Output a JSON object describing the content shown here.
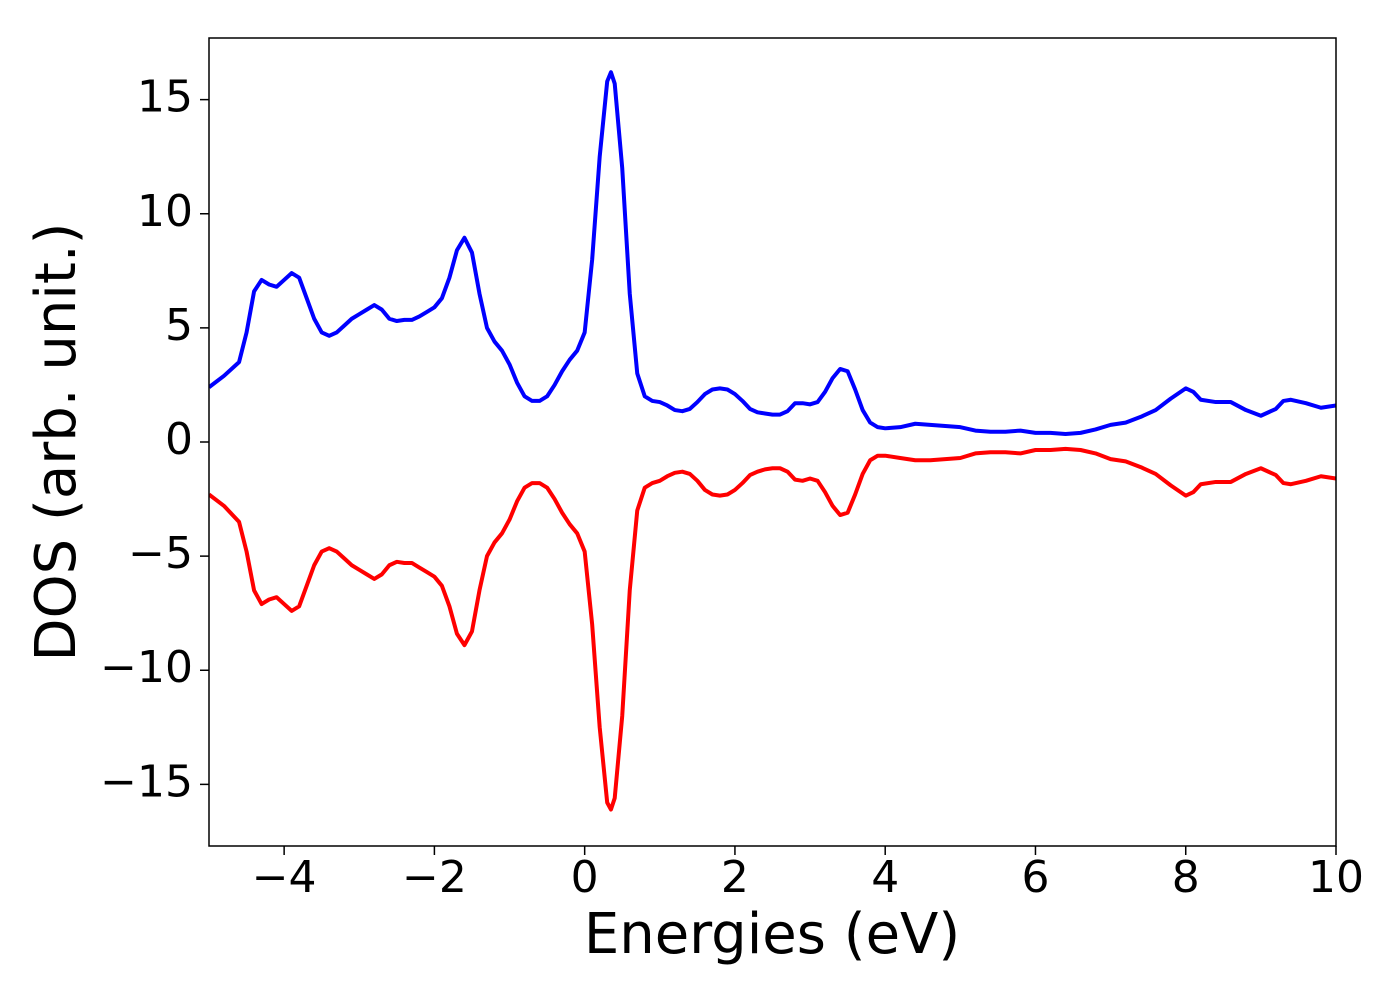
{
  "chart_data": {
    "type": "line",
    "xlabel": "Energies (eV)",
    "ylabel": "DOS (arb. unit.)",
    "x": [
      -5,
      -4.8,
      -4.6,
      -4.5,
      -4.4,
      -4.3,
      -4.2,
      -4.1,
      -4.0,
      -3.9,
      -3.8,
      -3.7,
      -3.6,
      -3.5,
      -3.4,
      -3.3,
      -3.2,
      -3.1,
      -3.0,
      -2.9,
      -2.8,
      -2.7,
      -2.6,
      -2.5,
      -2.4,
      -2.3,
      -2.2,
      -2.1,
      -2.0,
      -1.9,
      -1.8,
      -1.7,
      -1.6,
      -1.5,
      -1.4,
      -1.3,
      -1.2,
      -1.1,
      -1.0,
      -0.9,
      -0.8,
      -0.7,
      -0.6,
      -0.5,
      -0.4,
      -0.3,
      -0.2,
      -0.1,
      0.0,
      0.1,
      0.2,
      0.3,
      0.35,
      0.4,
      0.5,
      0.6,
      0.7,
      0.8,
      0.9,
      1.0,
      1.1,
      1.2,
      1.3,
      1.4,
      1.5,
      1.6,
      1.7,
      1.8,
      1.9,
      2.0,
      2.1,
      2.2,
      2.3,
      2.4,
      2.5,
      2.6,
      2.7,
      2.8,
      2.9,
      3.0,
      3.1,
      3.2,
      3.3,
      3.4,
      3.5,
      3.6,
      3.7,
      3.8,
      3.9,
      4.0,
      4.2,
      4.4,
      4.6,
      4.8,
      5.0,
      5.2,
      5.4,
      5.6,
      5.8,
      6.0,
      6.2,
      6.4,
      6.6,
      6.8,
      7.0,
      7.2,
      7.4,
      7.6,
      7.8,
      8.0,
      8.1,
      8.2,
      8.4,
      8.6,
      8.8,
      9.0,
      9.2,
      9.3,
      9.4,
      9.6,
      9.8,
      10.0
    ],
    "series": [
      {
        "color": "#0000ff",
        "values": [
          2.4,
          2.9,
          3.5,
          4.8,
          6.6,
          7.1,
          6.9,
          6.8,
          7.1,
          7.4,
          7.2,
          6.3,
          5.4,
          4.8,
          4.65,
          4.8,
          5.1,
          5.4,
          5.6,
          5.8,
          6.0,
          5.8,
          5.4,
          5.3,
          5.35,
          5.35,
          5.5,
          5.7,
          5.9,
          6.3,
          7.2,
          8.4,
          8.95,
          8.3,
          6.5,
          5.0,
          4.4,
          4.0,
          3.4,
          2.6,
          2.0,
          1.8,
          1.8,
          2.0,
          2.5,
          3.1,
          3.6,
          4.0,
          4.8,
          8.0,
          12.5,
          15.8,
          16.2,
          15.7,
          12.0,
          6.5,
          3.0,
          2.0,
          1.8,
          1.75,
          1.6,
          1.4,
          1.35,
          1.45,
          1.75,
          2.1,
          2.3,
          2.35,
          2.3,
          2.1,
          1.8,
          1.45,
          1.3,
          1.25,
          1.2,
          1.2,
          1.35,
          1.7,
          1.7,
          1.65,
          1.75,
          2.2,
          2.8,
          3.2,
          3.1,
          2.3,
          1.4,
          0.85,
          0.65,
          0.6,
          0.65,
          0.8,
          0.75,
          0.7,
          0.65,
          0.5,
          0.45,
          0.45,
          0.5,
          0.4,
          0.4,
          0.35,
          0.4,
          0.55,
          0.75,
          0.85,
          1.1,
          1.4,
          1.9,
          2.35,
          2.2,
          1.85,
          1.75,
          1.75,
          1.4,
          1.15,
          1.45,
          1.8,
          1.85,
          1.7,
          1.5,
          1.6
        ]
      },
      {
        "color": "#ff0000",
        "values": [
          -2.3,
          -2.8,
          -3.5,
          -4.8,
          -6.5,
          -7.1,
          -6.9,
          -6.8,
          -7.1,
          -7.4,
          -7.2,
          -6.3,
          -5.4,
          -4.8,
          -4.65,
          -4.8,
          -5.1,
          -5.4,
          -5.6,
          -5.8,
          -6.0,
          -5.8,
          -5.4,
          -5.25,
          -5.3,
          -5.3,
          -5.5,
          -5.7,
          -5.9,
          -6.3,
          -7.2,
          -8.4,
          -8.9,
          -8.3,
          -6.5,
          -5.0,
          -4.4,
          -4.0,
          -3.4,
          -2.6,
          -2.0,
          -1.8,
          -1.8,
          -2.0,
          -2.5,
          -3.1,
          -3.6,
          -4.0,
          -4.8,
          -8.0,
          -12.5,
          -15.8,
          -16.1,
          -15.6,
          -12.0,
          -6.5,
          -3.0,
          -2.0,
          -1.8,
          -1.7,
          -1.5,
          -1.35,
          -1.3,
          -1.4,
          -1.7,
          -2.1,
          -2.3,
          -2.35,
          -2.3,
          -2.1,
          -1.8,
          -1.45,
          -1.3,
          -1.2,
          -1.15,
          -1.15,
          -1.3,
          -1.65,
          -1.7,
          -1.6,
          -1.7,
          -2.2,
          -2.8,
          -3.2,
          -3.1,
          -2.3,
          -1.4,
          -0.8,
          -0.6,
          -0.6,
          -0.7,
          -0.8,
          -0.8,
          -0.75,
          -0.7,
          -0.5,
          -0.45,
          -0.45,
          -0.5,
          -0.35,
          -0.35,
          -0.3,
          -0.35,
          -0.5,
          -0.75,
          -0.85,
          -1.1,
          -1.4,
          -1.9,
          -2.35,
          -2.2,
          -1.85,
          -1.75,
          -1.75,
          -1.4,
          -1.15,
          -1.45,
          -1.8,
          -1.85,
          -1.7,
          -1.5,
          -1.6
        ]
      }
    ],
    "xlim": [
      -5,
      10
    ],
    "xticks": [
      {
        "value": -4,
        "label": "−4"
      },
      {
        "value": -2,
        "label": "−2"
      },
      0,
      2,
      4,
      6,
      8,
      10
    ],
    "ylim": [
      -17.7,
      17.7
    ],
    "yticks": [
      {
        "value": -15,
        "label": "−15"
      },
      {
        "value": -10,
        "label": "−10"
      },
      {
        "value": -5,
        "label": "−5"
      },
      0,
      5,
      10,
      15
    ]
  }
}
